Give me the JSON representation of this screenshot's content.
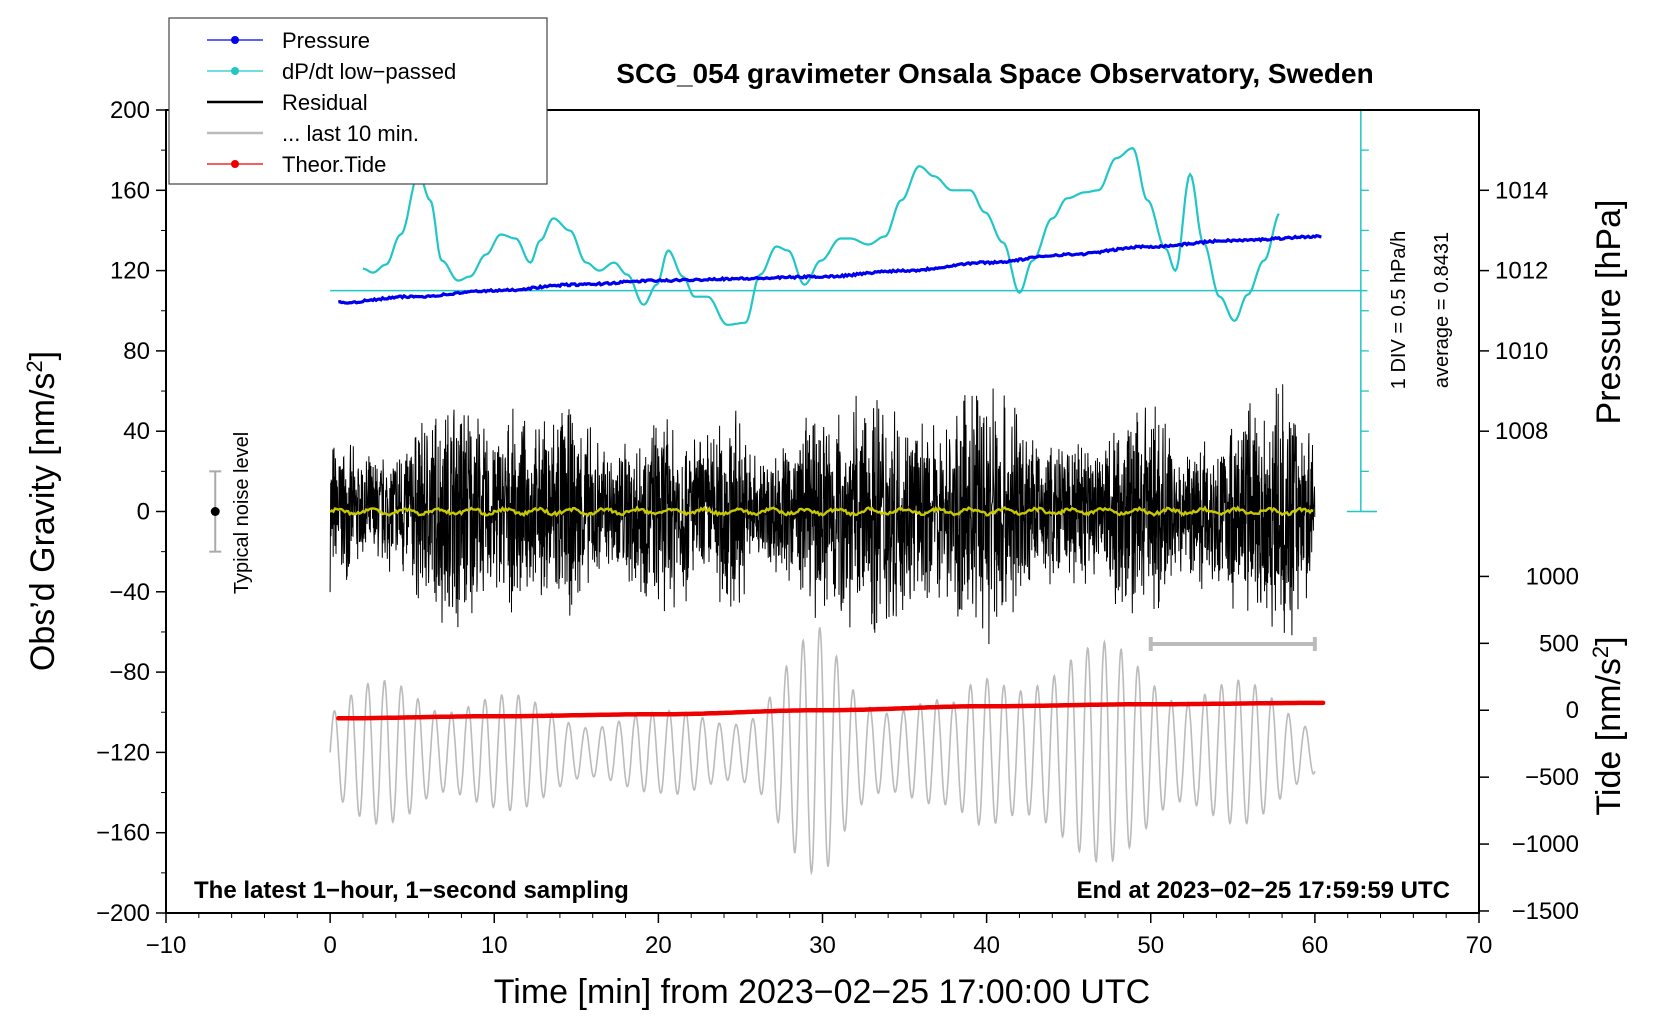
{
  "chart_data": {
    "type": "line",
    "title": "SCG_054 gravimeter Onsala Space Observatory, Sweden",
    "xlabel": "Time [min] from 2023−02−25 17:00:00 UTC",
    "ylabel_left_main": "Obs’d Gravity [nm/s",
    "ylabel_left_sup": "2",
    "ylabel_left_end": "]",
    "ylabel_pressure": "Pressure [hPa]",
    "ylabel_tide_main": "Tide [nm/s",
    "ylabel_tide_sup": "2",
    "ylabel_tide_end": "]",
    "xlim": [
      -10,
      70
    ],
    "ylim": [
      -200,
      200
    ],
    "x_ticks": [
      -10,
      0,
      10,
      20,
      30,
      40,
      50,
      60,
      70
    ],
    "x_tick_labels": [
      "−10",
      "0",
      "10",
      "20",
      "30",
      "40",
      "50",
      "60",
      "70"
    ],
    "y_ticks": [
      -200,
      -160,
      -120,
      -80,
      -40,
      0,
      40,
      80,
      120,
      160,
      200
    ],
    "y_tick_labels": [
      "−200",
      "−160",
      "−120",
      "−80",
      "−40",
      "0",
      "40",
      "80",
      "120",
      "160",
      "200"
    ],
    "pressure_axis": {
      "ticks": [
        1008,
        1010,
        1012,
        1014
      ],
      "tick_labels": [
        "1008",
        "1010",
        "1012",
        "1014"
      ],
      "gravity_per_hpa": 20,
      "ref_hpa": 1010,
      "ref_gravity": 80
    },
    "tide_axis": {
      "ticks": [
        -1500,
        -1000,
        -500,
        0,
        500,
        1000
      ],
      "tick_labels": [
        "−1500",
        "−1000",
        "−500",
        "0",
        "500",
        "1000"
      ],
      "ref_tide": 0,
      "ref_gravity": -99,
      "gravity_per_500": 33.33
    },
    "legend": [
      {
        "label": "Pressure",
        "color": "#0000ee",
        "marker": true
      },
      {
        "label": "dP/dt low−passed",
        "color": "#22c6c6",
        "marker": true
      },
      {
        "label": "Residual",
        "color": "#000000",
        "marker": false
      },
      {
        "label": "... last 10 min.",
        "color": "#bbbbbb",
        "marker": false
      },
      {
        "label": "Theor.Tide",
        "color": "#ee0000",
        "marker": true
      }
    ],
    "series": [
      {
        "name": "Pressure",
        "color": "#0000ee",
        "unit": "hPa",
        "x": [
          0.5,
          5,
          10,
          15,
          20,
          25,
          30,
          35,
          40,
          45,
          50,
          55,
          60.5
        ],
        "values": [
          1011.2,
          1011.35,
          1011.5,
          1011.65,
          1011.75,
          1011.8,
          1011.85,
          1012.0,
          1012.2,
          1012.4,
          1012.6,
          1012.75,
          1012.85
        ]
      },
      {
        "name": "dP/dt low−passed",
        "color": "#22c6c6",
        "unit": "gravity-scale",
        "x": [
          2,
          2.6,
          3.4,
          4.3,
          5.4,
          6.1,
          6.8,
          7.8,
          8.5,
          9.5,
          10.4,
          11.3,
          12.2,
          12.8,
          13.6,
          14.6,
          15.6,
          16.4,
          17.3,
          18.1,
          19.1,
          19.9,
          20.6,
          21.5,
          22.2,
          23.0,
          24.2,
          25.3,
          26.2,
          27.2,
          27.9,
          28.9,
          29.9,
          31.1,
          31.7,
          32.8,
          33.8,
          34.8,
          35.9,
          36.8,
          37.9,
          39.0,
          39.9,
          41.0,
          42.0,
          42.8,
          44.0,
          44.9,
          46.0,
          46.8,
          47.9,
          48.9,
          49.8,
          50.9,
          51.5,
          52.4,
          53.2,
          54.2,
          55.1,
          55.9,
          56.9,
          57.9
        ],
        "values": [
          121,
          119,
          123,
          138,
          168,
          155,
          125,
          115,
          117,
          128,
          138,
          136,
          124,
          135,
          146,
          140,
          124,
          120,
          124,
          118,
          103,
          113,
          130,
          117,
          107,
          107,
          93,
          94,
          118,
          132,
          130,
          113,
          125,
          136,
          136,
          133,
          137,
          155,
          172,
          167,
          160,
          160,
          149,
          134,
          109,
          125,
          146,
          156,
          159,
          160,
          176,
          181,
          155,
          131,
          120,
          168,
          134,
          107,
          95,
          108,
          125,
          149
        ],
        "reference_line": 110
      },
      {
        "name": "Residual",
        "color": "#000000",
        "x_range": [
          0,
          60
        ],
        "envelope": [
          {
            "x": 0,
            "amp": 42
          },
          {
            "x": 2,
            "amp": 30
          },
          {
            "x": 3.5,
            "amp": 32
          },
          {
            "x": 6,
            "amp": 55
          },
          {
            "x": 8,
            "amp": 70
          },
          {
            "x": 9.5,
            "amp": 45
          },
          {
            "x": 11,
            "amp": 52
          },
          {
            "x": 12.5,
            "amp": 45
          },
          {
            "x": 14,
            "amp": 62
          },
          {
            "x": 15.5,
            "amp": 48
          },
          {
            "x": 17,
            "amp": 35
          },
          {
            "x": 19,
            "amp": 48
          },
          {
            "x": 21,
            "amp": 55
          },
          {
            "x": 22.5,
            "amp": 40
          },
          {
            "x": 24.5,
            "amp": 60
          },
          {
            "x": 26,
            "amp": 30
          },
          {
            "x": 28,
            "amp": 40
          },
          {
            "x": 30,
            "amp": 60
          },
          {
            "x": 32.5,
            "amp": 62
          },
          {
            "x": 33.5,
            "amp": 73
          },
          {
            "x": 35,
            "amp": 52
          },
          {
            "x": 36.5,
            "amp": 45
          },
          {
            "x": 38,
            "amp": 52
          },
          {
            "x": 39,
            "amp": 70
          },
          {
            "x": 40.5,
            "amp": 78
          },
          {
            "x": 41.5,
            "amp": 65
          },
          {
            "x": 43,
            "amp": 38
          },
          {
            "x": 45,
            "amp": 40
          },
          {
            "x": 47,
            "amp": 45
          },
          {
            "x": 49,
            "amp": 60
          },
          {
            "x": 50.5,
            "amp": 58
          },
          {
            "x": 52,
            "amp": 35
          },
          {
            "x": 54,
            "amp": 45
          },
          {
            "x": 55.5,
            "amp": 55
          },
          {
            "x": 57,
            "amp": 68
          },
          {
            "x": 58.5,
            "amp": 65
          },
          {
            "x": 60,
            "amp": 40
          }
        ]
      },
      {
        "name": "Residual low-pass",
        "color": "#c8c800",
        "x_range": [
          0,
          60
        ],
        "mean": 0,
        "amp": 2
      },
      {
        "name": "... last 10 min.",
        "color": "#bbbbbb",
        "unit": "gravity-scale",
        "x_range": [
          0,
          60
        ],
        "baseline": -120,
        "envelope": [
          {
            "x": 0,
            "amp": 25
          },
          {
            "x": 5,
            "amp": 45
          },
          {
            "x": 10,
            "amp": 30
          },
          {
            "x": 15,
            "amp": 25
          },
          {
            "x": 20,
            "amp": 20
          },
          {
            "x": 23,
            "amp": 25
          },
          {
            "x": 26,
            "amp": 30
          },
          {
            "x": 28,
            "amp": 50
          },
          {
            "x": 30,
            "amp": 65
          },
          {
            "x": 32,
            "amp": 45
          },
          {
            "x": 35,
            "amp": 35
          },
          {
            "x": 38,
            "amp": 25
          },
          {
            "x": 40,
            "amp": 45
          },
          {
            "x": 43,
            "amp": 65
          },
          {
            "x": 46,
            "amp": 55
          },
          {
            "x": 50,
            "amp": 55
          },
          {
            "x": 53,
            "amp": 45
          },
          {
            "x": 56,
            "amp": 35
          },
          {
            "x": 60,
            "amp": 20
          }
        ]
      },
      {
        "name": "Theor.Tide",
        "color": "#ee0000",
        "unit": "nm/s^2",
        "x": [
          0.5,
          10,
          20,
          30,
          40,
          50,
          60.5
        ],
        "values": [
          -60,
          -45,
          -30,
          0,
          30,
          45,
          55
        ]
      }
    ],
    "noise_bar": {
      "label": "Typical noise level",
      "x": -7,
      "center": 0,
      "half_range": 20
    },
    "pressure_scale_bar": {
      "label_div": "1 DIV = 0.5 hPa/h",
      "label_avg": "average = 0.8431",
      "x": 62.8,
      "y_top": 200,
      "y_bottom": 0,
      "minor_step": 20
    },
    "last_10_min_bar": {
      "x_start": 50,
      "x_end": 60,
      "y": -66
    },
    "note_left": "The latest 1−hour, 1−second sampling",
    "note_right": "End at 2023−02−25 17:59:59 UTC"
  }
}
